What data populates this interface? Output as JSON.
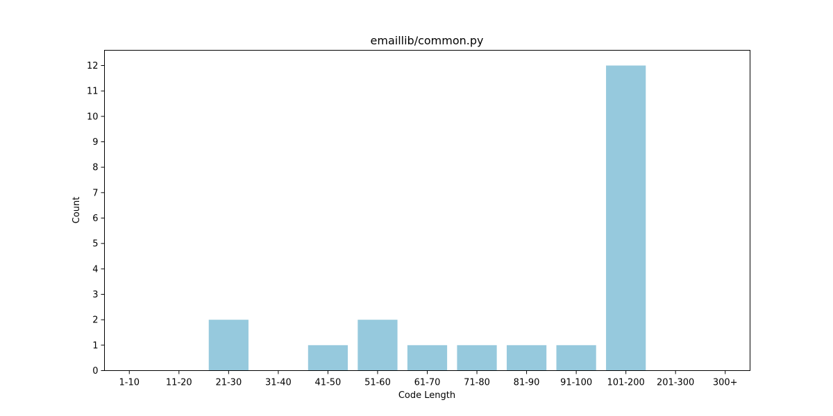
{
  "chart_data": {
    "type": "bar",
    "title": "emaillib/common.py",
    "xlabel": "Code Length",
    "ylabel": "Count",
    "categories": [
      "1-10",
      "11-20",
      "21-30",
      "31-40",
      "41-50",
      "51-60",
      "61-70",
      "71-80",
      "81-90",
      "91-100",
      "101-200",
      "201-300",
      "300+"
    ],
    "values": [
      0,
      0,
      2,
      0,
      1,
      2,
      1,
      1,
      1,
      1,
      12,
      0,
      0
    ],
    "ylim": [
      0,
      12.6
    ],
    "yticks": [
      "0",
      "1",
      "2",
      "3",
      "4",
      "5",
      "6",
      "7",
      "8",
      "9",
      "10",
      "11",
      "12"
    ],
    "bar_color": "#96c9dd",
    "grid": false,
    "legend": "none"
  }
}
